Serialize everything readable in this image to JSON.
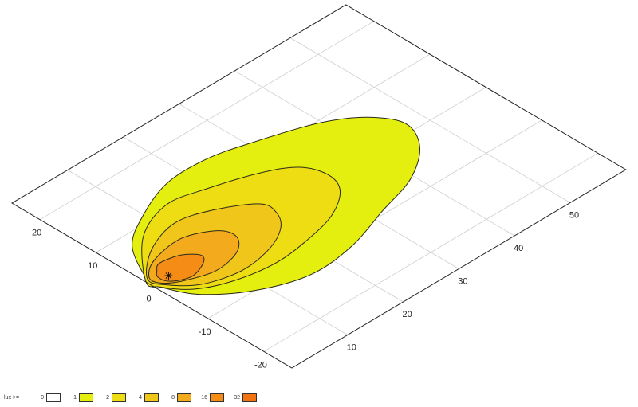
{
  "chart_data": {
    "type": "contour",
    "projection": "isometric-plane",
    "x_axis": {
      "range": [
        0,
        60
      ],
      "ticks": [
        10,
        20,
        30,
        40,
        50
      ],
      "tick_labels": [
        "10",
        "20",
        "30",
        "40",
        "50"
      ]
    },
    "y_axis": {
      "range": [
        -25,
        25
      ],
      "ticks": [
        -20,
        -10,
        0,
        10,
        20
      ],
      "tick_labels": [
        "-20",
        "-10",
        "0",
        "10",
        "20"
      ]
    },
    "grid": true,
    "luminaire": {
      "x": 3,
      "y": 0,
      "marker": "asterisk"
    },
    "contours": [
      {
        "level": 1,
        "points": [
          [
            0.1,
            0.5
          ],
          [
            4.1,
            7.6
          ],
          [
            9.9,
            11.4
          ],
          [
            16.9,
            14.1
          ],
          [
            24.1,
            14.2
          ],
          [
            31,
            12.5
          ],
          [
            39.5,
            9.6
          ],
          [
            44.7,
            6.2
          ],
          [
            47.3,
            1.7
          ],
          [
            45,
            -3.1
          ],
          [
            39.3,
            -7.1
          ],
          [
            32,
            -9.4
          ],
          [
            23.7,
            -12
          ],
          [
            15.9,
            -12.6
          ],
          [
            8.5,
            -10
          ],
          [
            2.9,
            -5.6
          ],
          [
            0.5,
            -0.9
          ]
        ]
      },
      {
        "level": 2,
        "points": [
          [
            0.1,
            1.2
          ],
          [
            6.7,
            8.2
          ],
          [
            13.6,
            10.9
          ],
          [
            19.6,
            9.7
          ],
          [
            26.8,
            7.3
          ],
          [
            31.2,
            4.6
          ],
          [
            32.6,
            0.8
          ],
          [
            31.2,
            -2.6
          ],
          [
            26.8,
            -5.5
          ],
          [
            21.1,
            -7
          ],
          [
            14.6,
            -7.7
          ],
          [
            8,
            -6.6
          ],
          [
            3.2,
            -4.3
          ],
          [
            0.5,
            -0.9
          ]
        ]
      },
      {
        "level": 4,
        "points": [
          [
            0.6,
            1.4
          ],
          [
            5.5,
            5.5
          ],
          [
            11.6,
            7.4
          ],
          [
            17.2,
            5.8
          ],
          [
            22.1,
            2.6
          ],
          [
            22.2,
            -0.2
          ],
          [
            20.2,
            -2.9
          ],
          [
            16,
            -5
          ],
          [
            10.3,
            -5.8
          ],
          [
            4.7,
            -4.3
          ],
          [
            1.5,
            -1.3
          ]
        ]
      },
      {
        "level": 8,
        "points": [
          [
            1,
            1.5
          ],
          [
            4,
            3.6
          ],
          [
            9.7,
            4.5
          ],
          [
            14.2,
            2.4
          ],
          [
            15,
            -0.2
          ],
          [
            12.6,
            -2.6
          ],
          [
            8,
            -3.5
          ],
          [
            3.3,
            -2
          ],
          [
            1.1,
            -0.3
          ]
        ]
      },
      {
        "level": 16,
        "points": [
          [
            1.8,
            0.7
          ],
          [
            2.7,
            1.8
          ],
          [
            4.1,
            2.7
          ],
          [
            7.2,
            2
          ],
          [
            9,
            0.2
          ],
          [
            8,
            -1.2
          ],
          [
            5,
            -2.2
          ],
          [
            2.3,
            -1
          ]
        ]
      }
    ],
    "legend": {
      "title": "lux >=",
      "placement": "bottom-left",
      "entries": [
        {
          "label": "0",
          "color": "#ffffff"
        },
        {
          "label": "1",
          "color": "#e4ef10"
        },
        {
          "label": "2",
          "color": "#efdd14"
        },
        {
          "label": "4",
          "color": "#f1c61a"
        },
        {
          "label": "8",
          "color": "#f3aa1c"
        },
        {
          "label": "16",
          "color": "#f58c16"
        },
        {
          "label": "32",
          "color": "#f27410"
        }
      ]
    }
  }
}
